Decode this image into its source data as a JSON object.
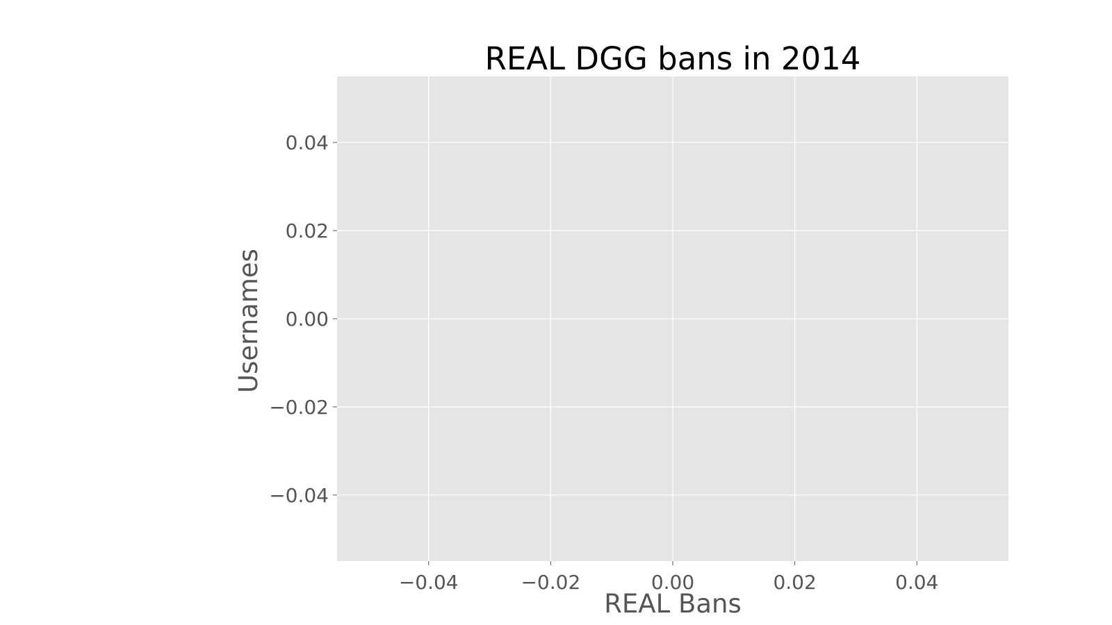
{
  "chart_data": {
    "type": "bar",
    "orientation": "horizontal",
    "title": "REAL DGG bans in 2014",
    "xlabel": "REAL Bans",
    "ylabel": "Usernames",
    "categories": [],
    "values": [],
    "xlim": [
      -0.055,
      0.055
    ],
    "ylim": [
      -0.055,
      0.055
    ],
    "x_ticks": [
      -0.04,
      -0.02,
      0.0,
      0.02,
      0.04
    ],
    "x_tick_labels": [
      "−0.04",
      "−0.02",
      "0.00",
      "0.02",
      "0.04"
    ],
    "y_ticks": [
      0.04,
      0.02,
      0.0,
      -0.02,
      -0.04
    ],
    "y_tick_labels": [
      "0.04",
      "0.02",
      "0.00",
      "−0.02",
      "−0.04"
    ],
    "grid": true,
    "style": "ggplot",
    "colors": {
      "plot_background": "#e5e5e5",
      "grid": "#ffffff",
      "tick_text": "#555555",
      "title": "#000000"
    }
  }
}
